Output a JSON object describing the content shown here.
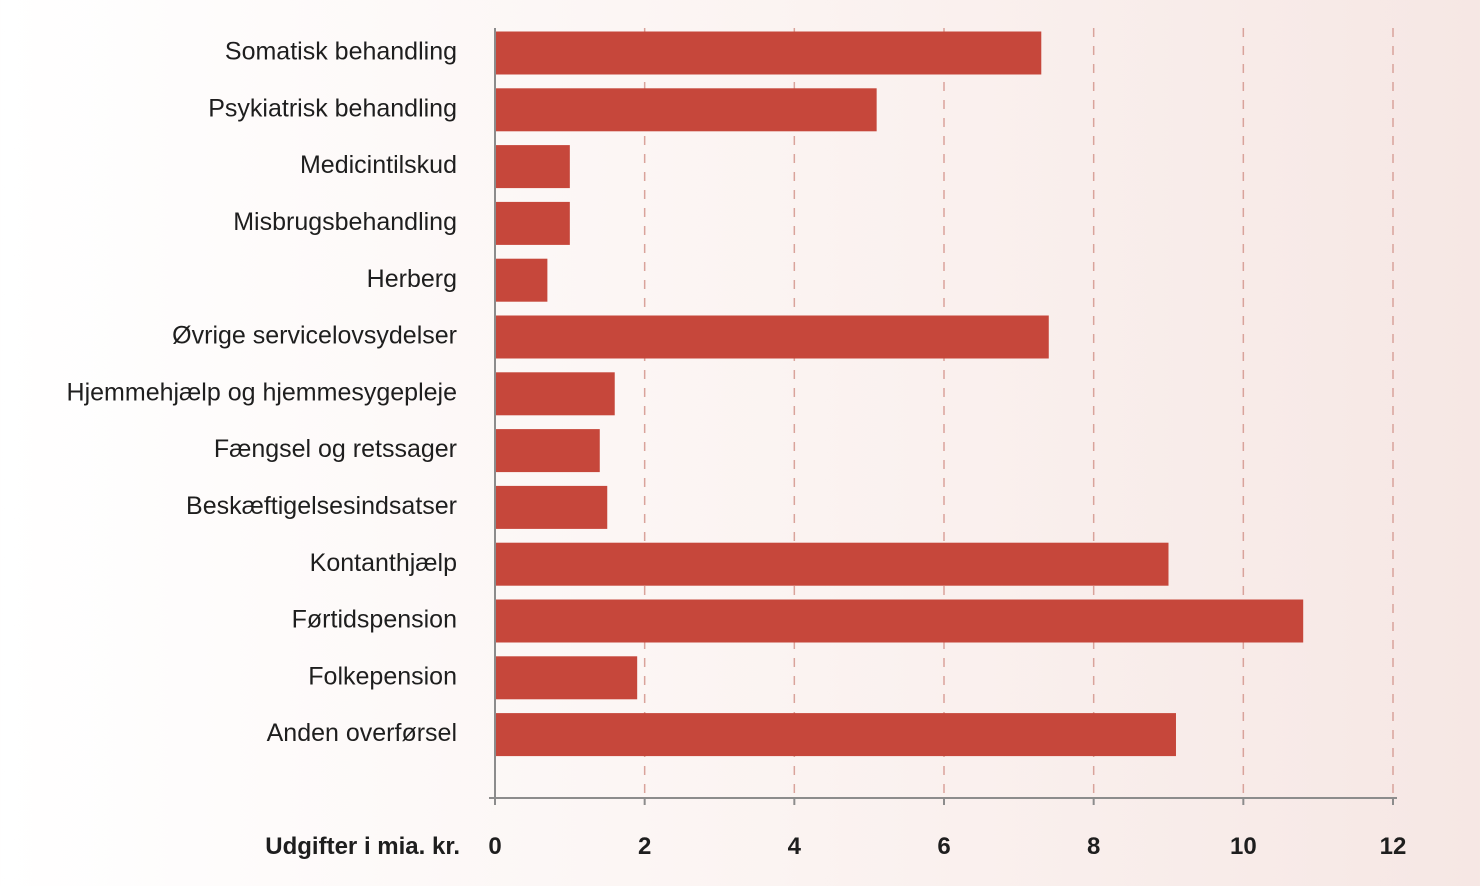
{
  "chart_data": {
    "type": "bar",
    "orientation": "horizontal",
    "title": "",
    "xlabel": "Udgifter i mia. kr.",
    "ylabel": "",
    "xlim": [
      0,
      12
    ],
    "xticks": [
      0,
      2,
      4,
      6,
      8,
      10,
      12
    ],
    "grid": "vertical dashed",
    "legend": "none",
    "categories": [
      "Somatisk behandling",
      "Psykiatrisk behandling",
      "Medicintilskud",
      "Misbrugsbehandling",
      "Herberg",
      "Øvrige servicelovsydelser",
      "Hjemmehjælp og hjemmesygepleje",
      "Fængsel og retssager",
      "Beskæftigelsesindsatser",
      "Kontanthjælp",
      "Førtidspension",
      "Folkepension",
      "Anden overførsel"
    ],
    "values": [
      7.3,
      5.1,
      1.0,
      1.0,
      0.7,
      7.4,
      1.6,
      1.4,
      1.5,
      9.0,
      10.8,
      1.9,
      9.1
    ],
    "colors": {
      "bar": "#c6473b",
      "grid": "#d9a39b",
      "axis": "#8c8c8c",
      "text": "#1e1e1e"
    }
  }
}
